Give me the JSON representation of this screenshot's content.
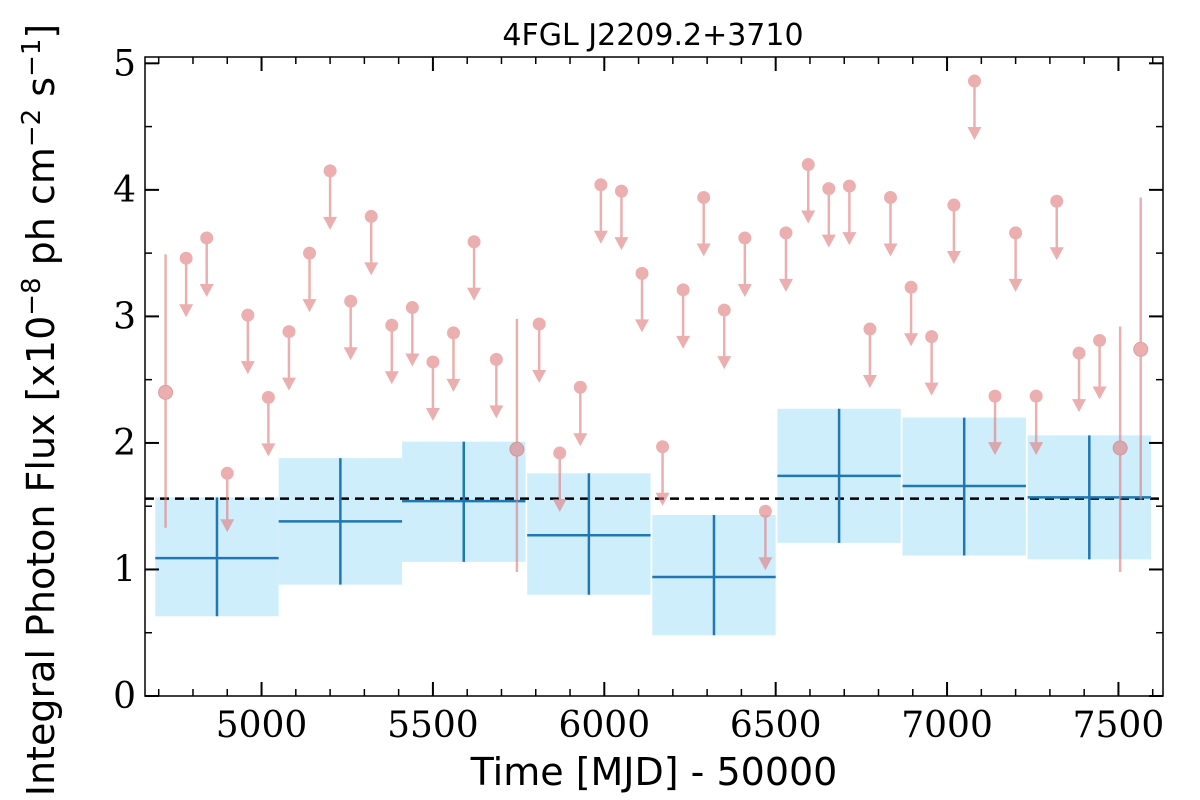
{
  "chart_data": {
    "type": "scatter",
    "title": "4FGL J2209.2+3710",
    "xlabel": "Time [MJD] - 50000",
    "ylabel_main": "Integral Photon Flux [x10",
    "ylabel_exp1": "−8",
    "ylabel_mid": " ph cm",
    "ylabel_exp2": "−2",
    "ylabel_s": " s",
    "ylabel_exp3": "−1",
    "ylabel_close": "]",
    "xlim": [
      4660,
      7630
    ],
    "ylim": [
      0,
      5.05
    ],
    "xticks": [
      5000,
      5500,
      6000,
      6500,
      7000,
      7500
    ],
    "yticks": [
      0,
      1,
      2,
      3,
      4,
      5
    ],
    "xtick_labels": [
      "5000",
      "5500",
      "6000",
      "6500",
      "7000",
      "7500"
    ],
    "ytick_labels": [
      "0",
      "1",
      "2",
      "3",
      "4",
      "5"
    ],
    "colors": {
      "bins_line": "#1f77b4",
      "bins_band": "#cfeefc",
      "monthly": "#e07b7b",
      "mean_line": "#000000"
    },
    "mean_flux": 1.56,
    "binned": [
      {
        "x": 4870,
        "xerr": 180,
        "y": 1.09,
        "ylo": 0.63,
        "yhi": 1.57
      },
      {
        "x": 5230,
        "xerr": 180,
        "y": 1.38,
        "ylo": 0.88,
        "yhi": 1.88
      },
      {
        "x": 5590,
        "xerr": 180,
        "y": 1.54,
        "ylo": 1.06,
        "yhi": 2.01
      },
      {
        "x": 5955,
        "xerr": 180,
        "y": 1.27,
        "ylo": 0.8,
        "yhi": 1.76
      },
      {
        "x": 6320,
        "xerr": 180,
        "y": 0.94,
        "ylo": 0.48,
        "yhi": 1.43
      },
      {
        "x": 6685,
        "xerr": 180,
        "y": 1.74,
        "ylo": 1.21,
        "yhi": 2.27
      },
      {
        "x": 7050,
        "xerr": 180,
        "y": 1.66,
        "ylo": 1.11,
        "yhi": 2.2
      },
      {
        "x": 7415,
        "xerr": 180,
        "y": 1.57,
        "ylo": 1.08,
        "yhi": 2.06
      }
    ],
    "upper_limits": [
      {
        "x": 4780,
        "y": 3.46
      },
      {
        "x": 4840,
        "y": 3.62
      },
      {
        "x": 4900,
        "y": 1.76
      },
      {
        "x": 4960,
        "y": 3.01
      },
      {
        "x": 5020,
        "y": 2.36
      },
      {
        "x": 5080,
        "y": 2.88
      },
      {
        "x": 5140,
        "y": 3.5
      },
      {
        "x": 5200,
        "y": 4.15
      },
      {
        "x": 5260,
        "y": 3.12
      },
      {
        "x": 5320,
        "y": 3.79
      },
      {
        "x": 5380,
        "y": 2.93
      },
      {
        "x": 5440,
        "y": 3.07
      },
      {
        "x": 5500,
        "y": 2.64
      },
      {
        "x": 5560,
        "y": 2.87
      },
      {
        "x": 5620,
        "y": 3.59
      },
      {
        "x": 5685,
        "y": 2.66
      },
      {
        "x": 5810,
        "y": 2.94
      },
      {
        "x": 5870,
        "y": 1.92
      },
      {
        "x": 5930,
        "y": 2.44
      },
      {
        "x": 5990,
        "y": 4.04
      },
      {
        "x": 6050,
        "y": 3.99
      },
      {
        "x": 6110,
        "y": 3.34
      },
      {
        "x": 6170,
        "y": 1.97
      },
      {
        "x": 6230,
        "y": 3.21
      },
      {
        "x": 6290,
        "y": 3.94
      },
      {
        "x": 6350,
        "y": 3.05
      },
      {
        "x": 6410,
        "y": 3.62
      },
      {
        "x": 6470,
        "y": 1.46
      },
      {
        "x": 6530,
        "y": 3.66
      },
      {
        "x": 6595,
        "y": 4.2
      },
      {
        "x": 6655,
        "y": 4.01
      },
      {
        "x": 6715,
        "y": 4.03
      },
      {
        "x": 6775,
        "y": 2.9
      },
      {
        "x": 6835,
        "y": 3.94
      },
      {
        "x": 6895,
        "y": 3.23
      },
      {
        "x": 6955,
        "y": 2.84
      },
      {
        "x": 7020,
        "y": 3.88
      },
      {
        "x": 7080,
        "y": 4.86
      },
      {
        "x": 7140,
        "y": 2.37
      },
      {
        "x": 7200,
        "y": 3.66
      },
      {
        "x": 7260,
        "y": 2.37
      },
      {
        "x": 7320,
        "y": 3.91
      },
      {
        "x": 7385,
        "y": 2.71
      },
      {
        "x": 7445,
        "y": 2.81
      }
    ],
    "detections": [
      {
        "x": 4720,
        "y": 2.4,
        "ylo": 1.33,
        "yhi": 3.49
      },
      {
        "x": 5745,
        "y": 1.95,
        "ylo": 0.98,
        "yhi": 2.98
      },
      {
        "x": 7505,
        "y": 1.96,
        "ylo": 0.98,
        "yhi": 2.92
      },
      {
        "x": 7565,
        "y": 2.74,
        "ylo": 1.55,
        "yhi": 3.94
      }
    ]
  }
}
